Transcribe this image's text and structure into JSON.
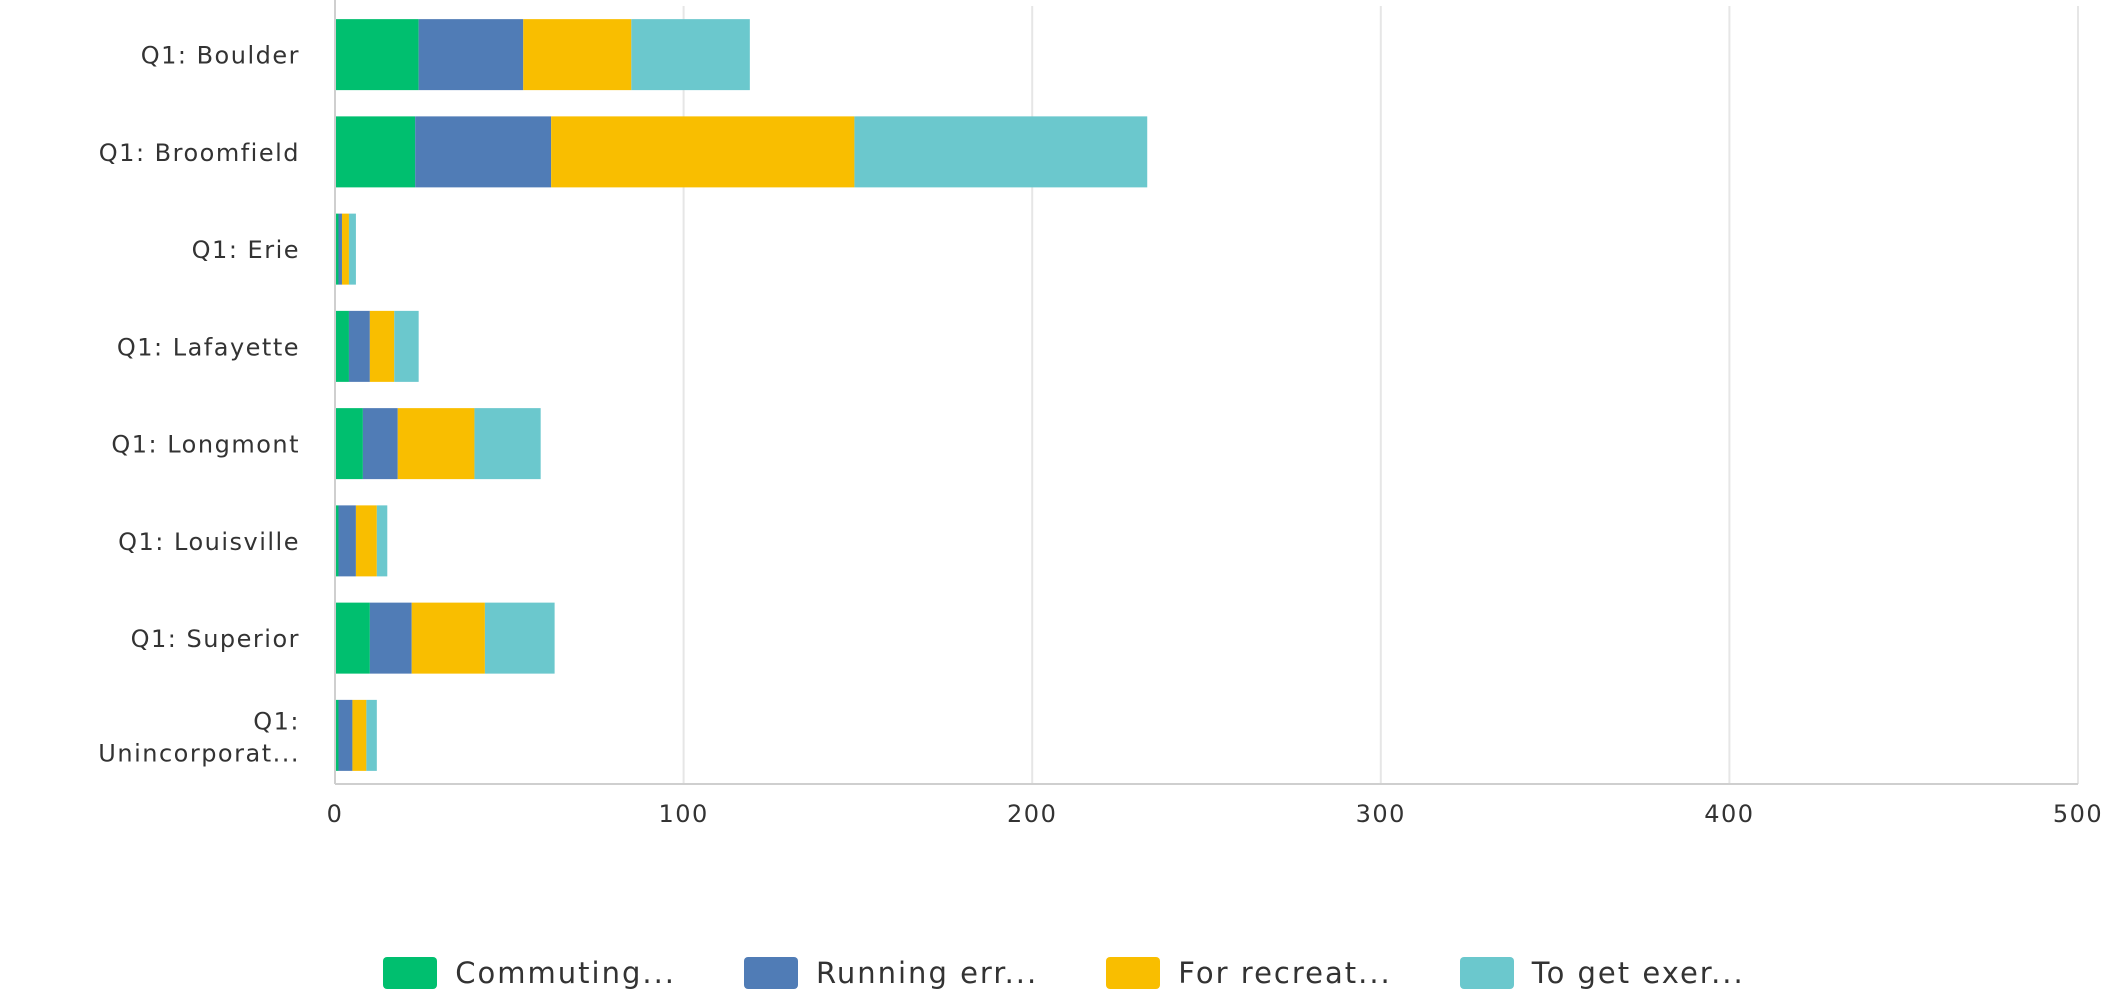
{
  "chart_data": {
    "type": "bar",
    "orientation": "horizontal",
    "stacked": true,
    "categories": [
      "Q1: Boulder",
      "Q1: Broomfield",
      "Q1: Erie",
      "Q1: Lafayette",
      "Q1: Longmont",
      "Q1: Louisville",
      "Q1: Superior",
      "Q1: Unincorporat..."
    ],
    "series": [
      {
        "name": "Commuting...",
        "color": "#00bf6f",
        "values": [
          24,
          23,
          1,
          4,
          8,
          1,
          10,
          1
        ]
      },
      {
        "name": "Running err...",
        "color": "#507cb6",
        "values": [
          30,
          39,
          1,
          6,
          10,
          5,
          12,
          4
        ]
      },
      {
        "name": "For recreat...",
        "color": "#f9be00",
        "values": [
          31,
          87,
          2,
          7,
          22,
          6,
          21,
          4
        ]
      },
      {
        "name": "To get exer...",
        "color": "#6bc8cd",
        "values": [
          34,
          84,
          2,
          7,
          19,
          3,
          20,
          3
        ]
      }
    ],
    "xlim": [
      0,
      500
    ],
    "xticks": [
      "0",
      "100",
      "200",
      "300",
      "400",
      "500"
    ],
    "grid": true,
    "legend_position": "bottom"
  }
}
